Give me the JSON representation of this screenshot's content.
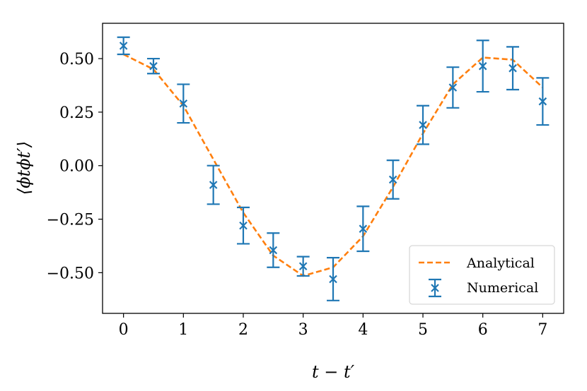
{
  "chart_data": {
    "type": "line",
    "xlabel": "t − t′",
    "ylabel": "⟨ϕtϕt′⟩",
    "xlim": [
      -0.35,
      7.35
    ],
    "ylim": [
      -0.69,
      0.665
    ],
    "x_ticks": [
      0,
      1,
      2,
      3,
      4,
      5,
      6,
      7
    ],
    "x_tick_labels": [
      "0",
      "1",
      "2",
      "3",
      "4",
      "5",
      "6",
      "7"
    ],
    "y_ticks": [
      0.5,
      0.25,
      0.0,
      -0.25,
      -0.5
    ],
    "y_tick_labels": [
      "0.50",
      "0.25",
      "0.00",
      "−0.25",
      "−0.50"
    ],
    "grid": false,
    "legend_position": "bottom-right",
    "series": [
      {
        "name": "Analytical",
        "style": "dashed",
        "color": "#ff7f0e",
        "x": [
          0,
          0.5,
          1,
          1.5,
          2,
          2.5,
          3,
          3.5,
          4,
          4.5,
          5,
          5.5,
          6,
          6.5,
          7
        ],
        "y": [
          0.52,
          0.45,
          0.28,
          0.03,
          -0.22,
          -0.42,
          -0.515,
          -0.475,
          -0.33,
          -0.1,
          0.15,
          0.38,
          0.505,
          0.495,
          0.365
        ]
      },
      {
        "name": "Numerical",
        "style": "errorbar",
        "marker": "x",
        "color": "#1f77b4",
        "x": [
          0,
          0.5,
          1,
          1.5,
          2,
          2.5,
          3,
          3.5,
          4,
          4.5,
          5,
          5.5,
          6,
          6.5,
          7
        ],
        "y": [
          0.56,
          0.465,
          0.29,
          -0.09,
          -0.28,
          -0.395,
          -0.47,
          -0.53,
          -0.295,
          -0.065,
          0.19,
          0.365,
          0.465,
          0.455,
          0.3
        ],
        "err": [
          0.04,
          0.035,
          0.09,
          0.09,
          0.085,
          0.08,
          0.045,
          0.1,
          0.105,
          0.09,
          0.09,
          0.095,
          0.12,
          0.1,
          0.11
        ]
      }
    ]
  }
}
